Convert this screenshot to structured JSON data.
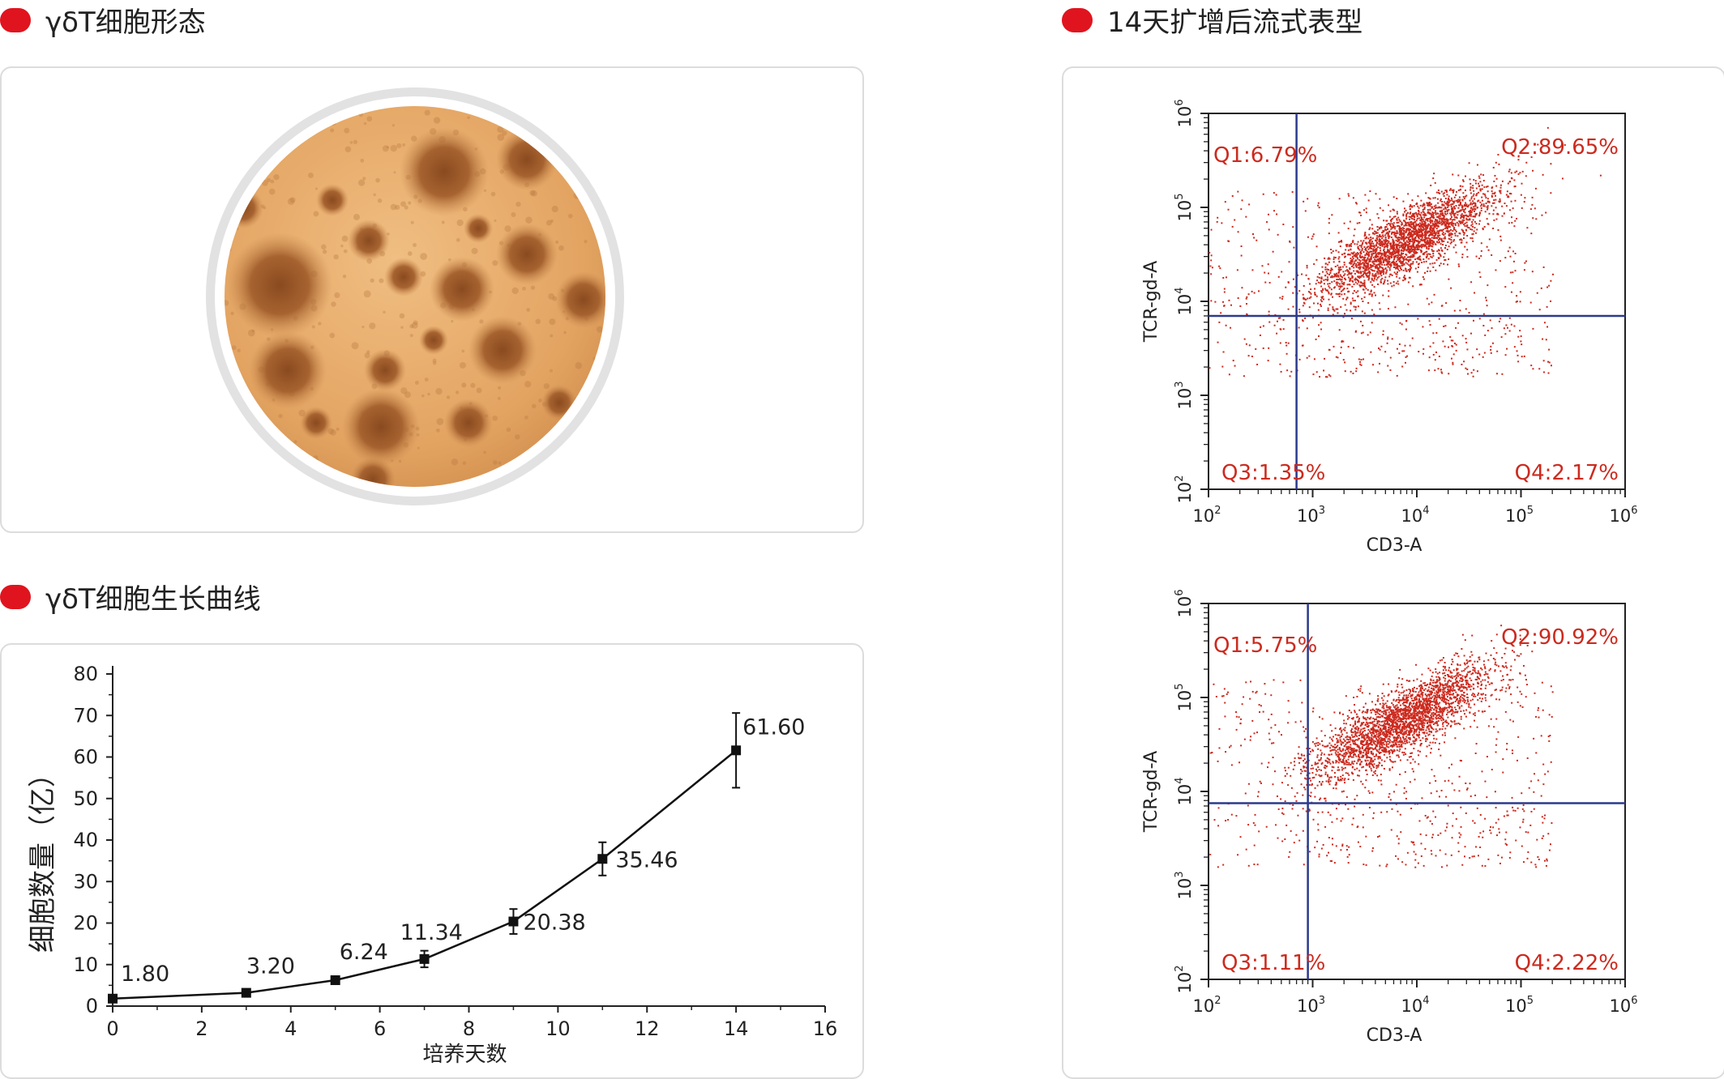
{
  "sections": {
    "morphology": {
      "title": "γδT细胞形态"
    },
    "growth": {
      "title": "γδT细胞生长曲线"
    },
    "flow": {
      "title": "14天扩增后流式表型"
    }
  },
  "chart_data": [
    {
      "type": "line",
      "title": "γδT细胞生长曲线",
      "xlabel": "培养天数",
      "ylabel": "细胞数量（亿）",
      "xlim": [
        0,
        16
      ],
      "ylim": [
        0,
        80
      ],
      "xticks": [
        "0",
        "2",
        "4",
        "6",
        "8",
        "10",
        "12",
        "14",
        "16"
      ],
      "yticks": [
        "0",
        "10",
        "20",
        "30",
        "40",
        "50",
        "60",
        "70",
        "80"
      ],
      "x": [
        0,
        3,
        5,
        7,
        9,
        11,
        14
      ],
      "values": [
        1.8,
        3.2,
        6.24,
        11.34,
        20.38,
        35.46,
        61.6
      ],
      "errors": [
        0.6,
        0.6,
        0.6,
        2.0,
        3.0,
        4.0,
        9.0
      ],
      "labels": [
        "1.80",
        "3.20",
        "6.24",
        "11.34",
        "20.38",
        "35.46",
        "61.60"
      ]
    },
    {
      "type": "scatter",
      "xlabel": "CD3-A",
      "ylabel": "TCR-gd-A",
      "xscale": "log",
      "yscale": "log",
      "xlim": [
        100,
        1000000
      ],
      "ylim": [
        100,
        1000000
      ],
      "gate_x": 700,
      "gate_y": 7000,
      "quadrants": {
        "q1": "Q1:6.79%",
        "q2": "Q2:89.65%",
        "q3": "Q3:1.35%",
        "q4": "Q4:2.17%"
      },
      "cluster_center_log": [
        3.9,
        4.65
      ],
      "point_color": "#cc2a1e",
      "gate_color": "#2b3a8c"
    },
    {
      "type": "scatter",
      "xlabel": "CD3-A",
      "ylabel": "TCR-gd-A",
      "xscale": "log",
      "yscale": "log",
      "xlim": [
        100,
        1000000
      ],
      "ylim": [
        100,
        1000000
      ],
      "gate_x": 900,
      "gate_y": 7500,
      "quadrants": {
        "q1": "Q1:5.75%",
        "q2": "Q2:90.92%",
        "q3": "Q3:1.11%",
        "q4": "Q4:2.22%"
      },
      "cluster_center_log": [
        3.85,
        4.75
      ],
      "point_color": "#cc2a1e",
      "gate_color": "#2b3a8c"
    }
  ]
}
